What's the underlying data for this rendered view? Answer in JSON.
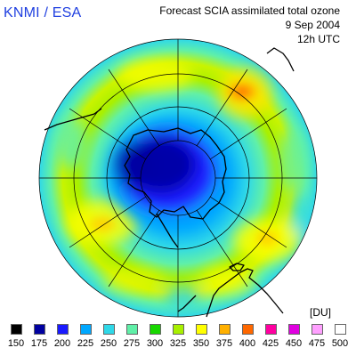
{
  "header": {
    "org": "KNMI / ESA",
    "title": "Forecast SCIA assimilated total ozone",
    "date": "9 Sep 2004",
    "time": "12h UTC"
  },
  "legend": {
    "unit": "[DU]",
    "levels": [
      {
        "label": "150",
        "color": "#000000"
      },
      {
        "label": "175",
        "color": "#0000a0"
      },
      {
        "label": "200",
        "color": "#1a1aff"
      },
      {
        "label": "225",
        "color": "#00a8ff"
      },
      {
        "label": "250",
        "color": "#2fd8e8"
      },
      {
        "label": "275",
        "color": "#60f0a8"
      },
      {
        "label": "300",
        "color": "#18d800"
      },
      {
        "label": "325",
        "color": "#a8f000"
      },
      {
        "label": "350",
        "color": "#ffff00"
      },
      {
        "label": "375",
        "color": "#ffb000"
      },
      {
        "label": "400",
        "color": "#ff6800"
      },
      {
        "label": "425",
        "color": "#ff00a0"
      },
      {
        "label": "450",
        "color": "#e000e0"
      },
      {
        "label": "475",
        "color": "#ffa0ff"
      },
      {
        "label": "500",
        "color": "#ffffff"
      }
    ]
  },
  "map": {
    "projection": "south polar stereographic",
    "graticule": true,
    "coastlines": true
  }
}
